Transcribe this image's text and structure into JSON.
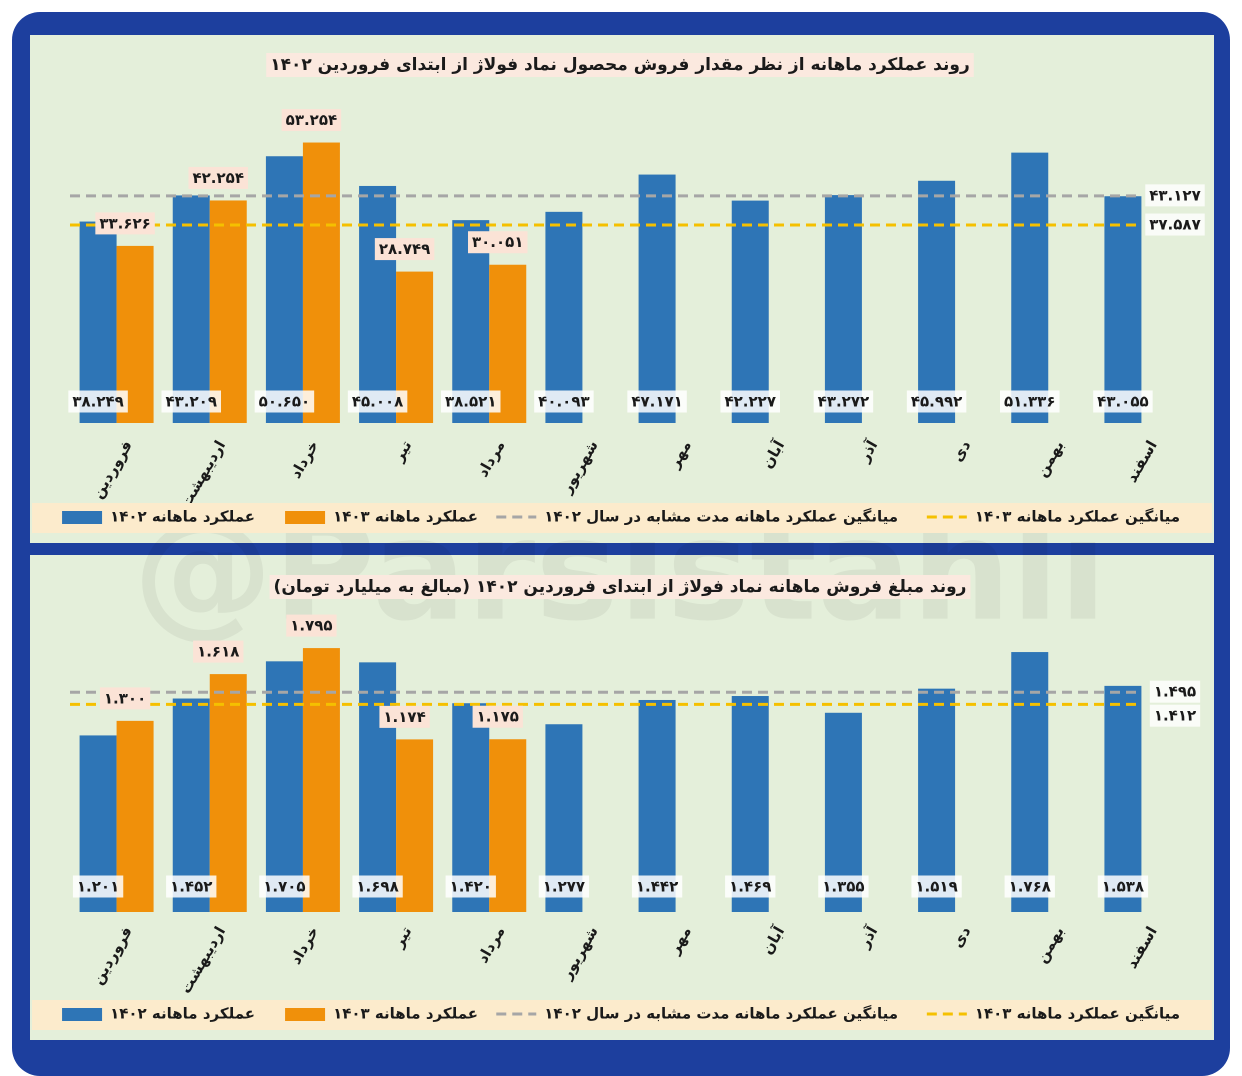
{
  "watermark": "@Parsistahli",
  "chart_data": [
    {
      "type": "bar",
      "title": "روند عملکرد ماهانه از نظر مقدار فروش محصول نماد فولاژ از ابتدای فروردین ۱۴۰۲",
      "categories": [
        "فروردین",
        "اردیبهشت",
        "خرداد",
        "تیر",
        "مرداد",
        "شهریور",
        "مهر",
        "آبان",
        "آذر",
        "دی",
        "بهمن",
        "اسفند"
      ],
      "ylim": [
        0,
        60000
      ],
      "series": [
        {
          "name": "عملکرد ماهانه ۱۴۰۲",
          "color": "#2e75b6",
          "values": [
            38249,
            43209,
            50650,
            45008,
            38521,
            40093,
            47171,
            42227,
            43272,
            45992,
            51336,
            43055
          ],
          "value_labels": [
            "۳۸.۲۴۹",
            "۴۳.۲۰۹",
            "۵۰.۶۵۰",
            "۴۵.۰۰۸",
            "۳۸.۵۲۱",
            "۴۰.۰۹۳",
            "۴۷.۱۷۱",
            "۴۲.۲۲۷",
            "۴۳.۲۷۲",
            "۴۵.۹۹۲",
            "۵۱.۳۳۶",
            "۴۳.۰۵۵"
          ]
        },
        {
          "name": "عملکرد ماهانه ۱۴۰۳",
          "color": "#f0900a",
          "values": [
            33626,
            42254,
            53254,
            28749,
            30051,
            null,
            null,
            null,
            null,
            null,
            null,
            null
          ],
          "value_labels": [
            "۳۳.۶۲۶",
            "۴۲.۲۵۴",
            "۵۳.۲۵۴",
            "۲۸.۷۴۹",
            "۳۰.۰۵۱",
            null,
            null,
            null,
            null,
            null,
            null,
            null
          ]
        }
      ],
      "reference_lines": [
        {
          "name": "میانگین عملکرد ماهانه مدت مشابه در سال ۱۴۰۲",
          "color": "#a6a6a6",
          "value": 43127,
          "value_label": "۴۳.۱۲۷"
        },
        {
          "name": "میانگین عملکرد ماهانه ۱۴۰۳",
          "color": "#f5c000",
          "value": 37587,
          "value_label": "۳۷.۵۸۷"
        }
      ]
    },
    {
      "type": "bar",
      "title": "روند مبلغ فروش ماهانه نماد فولاژ از ابتدای فروردین ۱۴۰۲ (مبالغ به میلیارد تومان)",
      "categories": [
        "فروردین",
        "اردیبهشت",
        "خرداد",
        "تیر",
        "مرداد",
        "شهریور",
        "مهر",
        "آبان",
        "آذر",
        "دی",
        "بهمن",
        "اسفند"
      ],
      "ylim": [
        0,
        1850
      ],
      "series": [
        {
          "name": "عملکرد ماهانه ۱۴۰۲",
          "color": "#2e75b6",
          "values": [
            1201,
            1452,
            1705,
            1698,
            1420,
            1277,
            1442,
            1469,
            1355,
            1519,
            1768,
            1538
          ],
          "value_labels": [
            "۱.۲۰۱",
            "۱.۴۵۲",
            "۱.۷۰۵",
            "۱.۶۹۸",
            "۱.۴۲۰",
            "۱.۲۷۷",
            "۱.۴۴۲",
            "۱.۴۶۹",
            "۱.۳۵۵",
            "۱.۵۱۹",
            "۱.۷۶۸",
            "۱.۵۳۸"
          ]
        },
        {
          "name": "عملکرد ماهانه ۱۴۰۳",
          "color": "#f0900a",
          "values": [
            1300,
            1618,
            1795,
            1174,
            1175,
            null,
            null,
            null,
            null,
            null,
            null,
            null
          ],
          "value_labels": [
            "۱.۳۰۰",
            "۱.۶۱۸",
            "۱.۷۹۵",
            "۱.۱۷۴",
            "۱.۱۷۵",
            null,
            null,
            null,
            null,
            null,
            null,
            null
          ]
        }
      ],
      "reference_lines": [
        {
          "name": "میانگین عملکرد ماهانه مدت مشابه در سال ۱۴۰۲",
          "color": "#a6a6a6",
          "value": 1495,
          "value_label": "۱.۴۹۵"
        },
        {
          "name": "میانگین عملکرد ماهانه ۱۴۰۳",
          "color": "#f5c000",
          "value": 1412,
          "value_label": "۱.۴۱۲"
        }
      ]
    }
  ]
}
